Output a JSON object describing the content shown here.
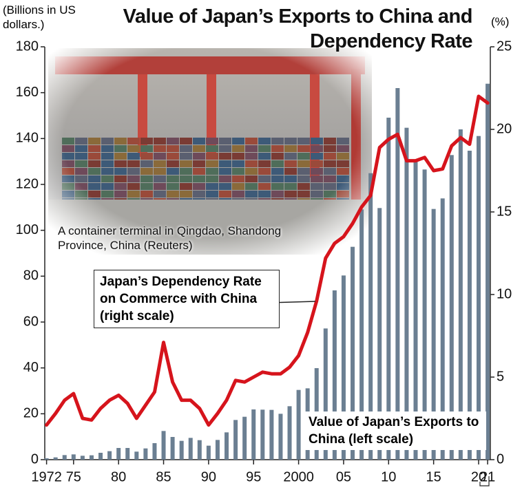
{
  "chart_data": {
    "type": "bar",
    "title": "Value of Japan’s Exports to China and Dependency Rate",
    "y_label": "(Billions in US dollars.)",
    "y2_label": "(%)",
    "photo_caption": "A container terminal in Qingdao, Shandong Province, China (Reuters)",
    "x": [
      1972,
      1973,
      1974,
      1975,
      1976,
      1977,
      1978,
      1979,
      1980,
      1981,
      1982,
      1983,
      1984,
      1985,
      1986,
      1987,
      1988,
      1989,
      1990,
      1991,
      1992,
      1993,
      1994,
      1995,
      1996,
      1997,
      1998,
      1999,
      2000,
      2001,
      2002,
      2003,
      2004,
      2005,
      2006,
      2007,
      2008,
      2009,
      2010,
      2011,
      2012,
      2013,
      2014,
      2015,
      2016,
      2017,
      2018,
      2019,
      2020,
      2021
    ],
    "xlim": [
      1971.8,
      2021.3
    ],
    "xticks": [
      1972,
      {
        "value": 1975,
        "label": "75"
      },
      {
        "value": 1980,
        "label": "80"
      },
      {
        "value": 1985,
        "label": "85"
      },
      {
        "value": 1990,
        "label": "90"
      },
      {
        "value": 1995,
        "label": "95"
      },
      2000,
      {
        "value": 2005,
        "label": "05"
      },
      {
        "value": 2010,
        "label": "10"
      },
      {
        "value": 2015,
        "label": "15"
      },
      {
        "value": 2020,
        "label": "20"
      },
      {
        "value": 2021,
        "label": "21"
      }
    ],
    "ylim": [
      0,
      180
    ],
    "yticks": [
      0,
      20,
      40,
      60,
      80,
      100,
      120,
      140,
      160,
      180
    ],
    "y2lim": [
      0,
      25
    ],
    "y2ticks": [
      0,
      5,
      10,
      15,
      20,
      25
    ],
    "series": [
      {
        "name": "Value of Japan’s Exports to China (left scale)",
        "type": "bar",
        "axis": "y",
        "color": "#6b7f92",
        "values": [
          0.6,
          1.0,
          2.0,
          2.3,
          1.7,
          1.9,
          3.0,
          3.7,
          5.1,
          5.1,
          3.5,
          4.9,
          7.2,
          12.5,
          9.9,
          8.2,
          9.5,
          8.5,
          6.1,
          8.6,
          11.9,
          17.3,
          18.7,
          21.9,
          21.8,
          21.7,
          20.0,
          23.3,
          30.4,
          31.1,
          39.9,
          57.2,
          73.8,
          80.3,
          92.8,
          109.1,
          124.9,
          109.7,
          149.1,
          162.0,
          144.7,
          129.9,
          126.5,
          109.3,
          113.9,
          132.8,
          144.0,
          134.7,
          141.1,
          163.9
        ]
      },
      {
        "name": "Japan’s Dependency Rate on Commerce with China (right scale)",
        "type": "line",
        "axis": "y2",
        "color": "#d6141c",
        "values": [
          2.1,
          2.8,
          3.6,
          4.0,
          2.5,
          2.4,
          3.1,
          3.6,
          3.9,
          3.4,
          2.5,
          3.3,
          4.1,
          7.1,
          4.7,
          3.6,
          3.6,
          3.1,
          2.1,
          2.8,
          3.6,
          4.8,
          4.7,
          5.0,
          5.3,
          5.2,
          5.2,
          5.6,
          6.3,
          7.7,
          9.6,
          12.2,
          13.1,
          13.5,
          14.3,
          15.3,
          16.0,
          18.9,
          19.4,
          19.7,
          18.1,
          18.1,
          18.3,
          17.5,
          17.6,
          19.0,
          19.5,
          19.1,
          22.0,
          21.6
        ]
      }
    ]
  }
}
